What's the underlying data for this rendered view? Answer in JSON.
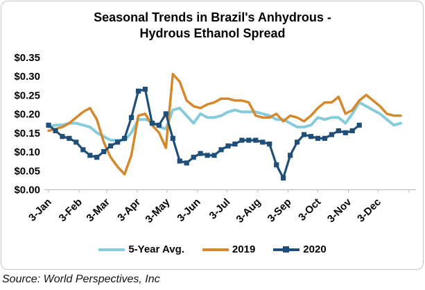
{
  "title": {
    "line1": "Seasonal Trends in Brazil's Anhydrous -",
    "line2": "Hydrous Ethanol Spread"
  },
  "source": "Source: World Perspectives, Inc",
  "legend": [
    {
      "label": "5-Year Avg.",
      "color": "#86cbdc",
      "marker": false
    },
    {
      "label": "2019",
      "color": "#d5882a",
      "marker": false
    },
    {
      "label": "2020",
      "color": "#1f4e79",
      "marker": true
    }
  ],
  "chart_data": {
    "type": "line",
    "title": "Seasonal Trends in Brazil's Anhydrous - Hydrous Ethanol Spread",
    "x_unit": "weekly points, January through December",
    "x_tick_labels": [
      "3-Jan",
      "3-Feb",
      "3-Mar",
      "3-Apr",
      "3-May",
      "3-Jun",
      "3-Jul",
      "3-Aug",
      "3-Sep",
      "3-Oct",
      "3-Nov",
      "3-Dec"
    ],
    "x_tick_week_positions": [
      0,
      4.43,
      8.43,
      12.86,
      17.14,
      21.57,
      25.86,
      30.29,
      34.71,
      39.0,
      43.43,
      47.71,
      52.2
    ],
    "y_ticks": [
      0.0,
      0.05,
      0.1,
      0.15,
      0.2,
      0.25,
      0.3,
      0.35
    ],
    "y_tick_labels": [
      "$0.00",
      "$0.05",
      "$0.10",
      "$0.15",
      "$0.20",
      "$0.25",
      "$0.30",
      "$0.35"
    ],
    "ylim": [
      0,
      0.35
    ],
    "grid": false,
    "legend_position": "bottom",
    "axis_color": "#bfbfbf",
    "series": [
      {
        "name": "5-Year Avg.",
        "color": "#86cbdc",
        "line_width": 4,
        "marker": "none",
        "values": [
          0.165,
          0.17,
          0.17,
          0.175,
          0.175,
          0.17,
          0.165,
          0.15,
          0.14,
          0.13,
          0.13,
          0.13,
          0.15,
          0.185,
          0.185,
          0.18,
          0.165,
          0.16,
          0.21,
          0.215,
          0.195,
          0.175,
          0.2,
          0.19,
          0.19,
          0.195,
          0.205,
          0.21,
          0.205,
          0.205,
          0.205,
          0.2,
          0.195,
          0.185,
          0.185,
          0.175,
          0.165,
          0.165,
          0.17,
          0.19,
          0.185,
          0.19,
          0.19,
          0.175,
          0.2,
          0.23,
          0.22,
          0.21,
          0.2,
          0.185,
          0.17,
          0.175
        ]
      },
      {
        "name": "2019",
        "color": "#d5882a",
        "line_width": 3.5,
        "marker": "none",
        "values": [
          0.155,
          0.16,
          0.165,
          0.175,
          0.19,
          0.205,
          0.215,
          0.185,
          0.125,
          0.085,
          0.06,
          0.04,
          0.09,
          0.195,
          0.2,
          0.17,
          0.15,
          0.11,
          0.305,
          0.285,
          0.235,
          0.22,
          0.215,
          0.225,
          0.23,
          0.24,
          0.24,
          0.235,
          0.235,
          0.23,
          0.195,
          0.19,
          0.19,
          0.2,
          0.18,
          0.195,
          0.19,
          0.18,
          0.195,
          0.215,
          0.23,
          0.23,
          0.245,
          0.2,
          0.21,
          0.235,
          0.25,
          0.235,
          0.22,
          0.2,
          0.195,
          0.195
        ]
      },
      {
        "name": "2020",
        "color": "#1f4e79",
        "line_width": 3.2,
        "marker": "square",
        "values": [
          0.17,
          0.155,
          0.14,
          0.135,
          0.125,
          0.105,
          0.09,
          0.085,
          0.1,
          0.115,
          0.125,
          0.135,
          0.19,
          0.26,
          0.265,
          0.175,
          0.17,
          0.2,
          0.135,
          0.075,
          0.07,
          0.085,
          0.095,
          0.09,
          0.09,
          0.105,
          0.115,
          0.12,
          0.13,
          0.13,
          0.13,
          0.125,
          0.12,
          0.065,
          0.03,
          0.09,
          0.125,
          0.145,
          0.14,
          0.135,
          0.135,
          0.145,
          0.155,
          0.15,
          0.155,
          0.17
        ]
      }
    ]
  }
}
